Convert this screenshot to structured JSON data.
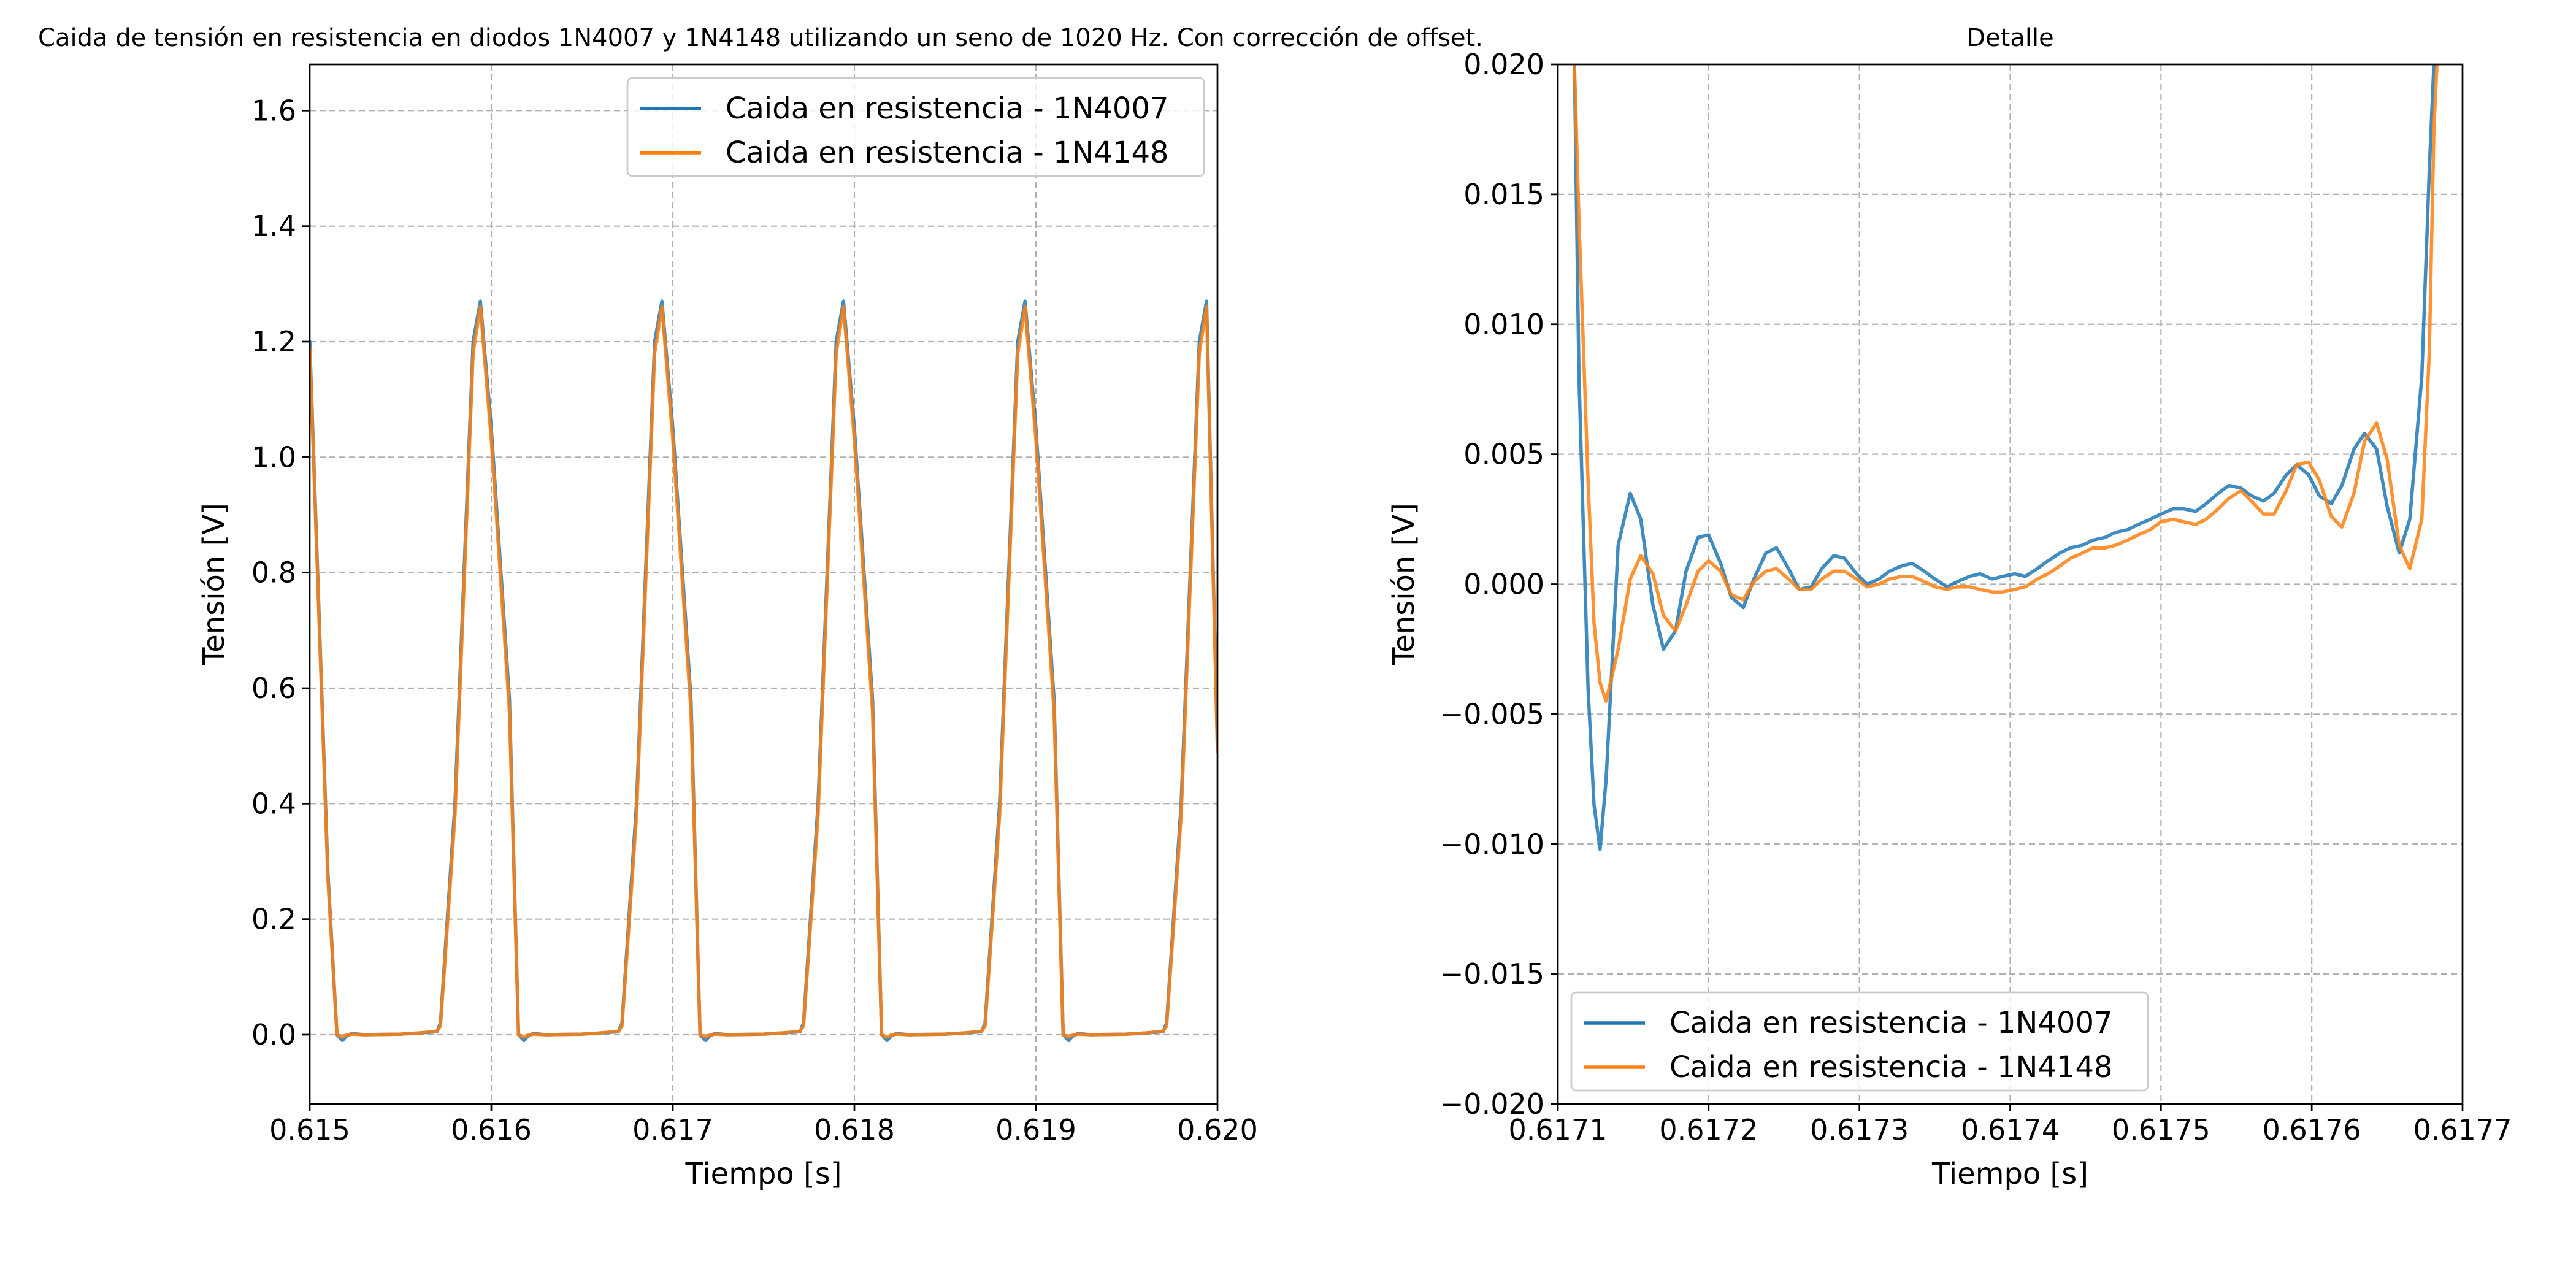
{
  "figure": {
    "suptitle": "Caida de tensión en resistencia en diodos 1N4007 y 1N4148 utilizando un seno de 1020 Hz. Con corrección de offset."
  },
  "colors": {
    "series_1N4007": "#1f77b4",
    "series_1N4148": "#ff7f0e"
  },
  "chart_data": [
    {
      "type": "line",
      "title": "",
      "xlabel": "Tiempo [s]",
      "ylabel": "Tensión [V]",
      "xlim": [
        0.615,
        0.62
      ],
      "ylim": [
        -0.12,
        1.68
      ],
      "xticks": [
        "0.615",
        "0.616",
        "0.617",
        "0.618",
        "0.619",
        "0.620"
      ],
      "yticks": [
        "0.0",
        "0.2",
        "0.4",
        "0.6",
        "0.8",
        "1.0",
        "1.2",
        "1.4",
        "1.6"
      ],
      "grid": true,
      "legend_position": "top-right",
      "series": [
        {
          "name": "Caida en resistencia - 1N4007",
          "x": [
            0.615,
            0.61505,
            0.6151,
            0.61515,
            0.61518,
            0.6152,
            0.61523,
            0.6153,
            0.6155,
            0.6156,
            0.6157,
            0.61572,
            0.6158,
            0.6159,
            0.61594,
            0.616,
            0.6161,
            0.61615,
            0.61618,
            0.6162,
            0.61623,
            0.6163,
            0.6165,
            0.6166,
            0.6167,
            0.61672,
            0.6168,
            0.6169,
            0.61694,
            0.617,
            0.6171,
            0.61715,
            0.61718,
            0.6172,
            0.61723,
            0.6173,
            0.6175,
            0.6176,
            0.6177,
            0.61772,
            0.6178,
            0.6179,
            0.61794,
            0.618,
            0.6181,
            0.61815,
            0.61818,
            0.6182,
            0.61823,
            0.6183,
            0.6185,
            0.6186,
            0.6187,
            0.61872,
            0.6188,
            0.6189,
            0.61894,
            0.619,
            0.6191,
            0.61915,
            0.61918,
            0.6192,
            0.61923,
            0.6193,
            0.6195,
            0.6196,
            0.6197,
            0.61972,
            0.6198,
            0.6199,
            0.61994,
            0.62
          ],
          "y": [
            1.2,
            0.74,
            0.28,
            0.0,
            -0.01,
            -0.003,
            0.002,
            0.0,
            0.001,
            0.003,
            0.005,
            0.02,
            0.4,
            1.2,
            1.27,
            1.05,
            0.58,
            0.0,
            -0.01,
            -0.003,
            0.002,
            0.0,
            0.001,
            0.003,
            0.005,
            0.02,
            0.4,
            1.2,
            1.27,
            1.05,
            0.58,
            0.0,
            -0.01,
            -0.003,
            0.002,
            0.0,
            0.001,
            0.003,
            0.005,
            0.02,
            0.4,
            1.2,
            1.27,
            1.05,
            0.58,
            0.0,
            -0.01,
            -0.003,
            0.002,
            0.0,
            0.001,
            0.003,
            0.005,
            0.02,
            0.4,
            1.2,
            1.27,
            1.05,
            0.58,
            0.0,
            -0.01,
            -0.003,
            0.002,
            0.0,
            0.001,
            0.003,
            0.005,
            0.02,
            0.4,
            1.2,
            1.27,
            0.5
          ]
        },
        {
          "name": "Caida en resistencia - 1N4148",
          "x": [
            0.615,
            0.61505,
            0.6151,
            0.61515,
            0.61518,
            0.6152,
            0.61523,
            0.6153,
            0.6155,
            0.6156,
            0.6157,
            0.61572,
            0.6158,
            0.6159,
            0.61594,
            0.616,
            0.6161,
            0.61615,
            0.61618,
            0.6162,
            0.61623,
            0.6163,
            0.6165,
            0.6166,
            0.6167,
            0.61672,
            0.6168,
            0.6169,
            0.61694,
            0.617,
            0.6171,
            0.61715,
            0.61718,
            0.6172,
            0.61723,
            0.6173,
            0.6175,
            0.6176,
            0.6177,
            0.61772,
            0.6178,
            0.6179,
            0.61794,
            0.618,
            0.6181,
            0.61815,
            0.61818,
            0.6182,
            0.61823,
            0.6183,
            0.6185,
            0.6186,
            0.6187,
            0.61872,
            0.6188,
            0.6189,
            0.61894,
            0.619,
            0.6191,
            0.61915,
            0.61918,
            0.6192,
            0.61923,
            0.6193,
            0.6195,
            0.6196,
            0.6197,
            0.61972,
            0.6198,
            0.6199,
            0.61994,
            0.62
          ],
          "y": [
            1.19,
            0.73,
            0.27,
            0.0,
            -0.004,
            -0.001,
            0.001,
            0.0,
            0.001,
            0.003,
            0.006,
            0.015,
            0.38,
            1.18,
            1.26,
            1.03,
            0.56,
            0.0,
            -0.004,
            -0.001,
            0.001,
            0.0,
            0.001,
            0.003,
            0.006,
            0.015,
            0.38,
            1.18,
            1.26,
            1.03,
            0.56,
            0.0,
            -0.004,
            -0.001,
            0.001,
            0.0,
            0.001,
            0.003,
            0.006,
            0.015,
            0.38,
            1.18,
            1.26,
            1.03,
            0.56,
            0.0,
            -0.004,
            -0.001,
            0.001,
            0.0,
            0.001,
            0.003,
            0.006,
            0.015,
            0.38,
            1.18,
            1.26,
            1.03,
            0.56,
            0.0,
            -0.004,
            -0.001,
            0.001,
            0.0,
            0.001,
            0.003,
            0.006,
            0.015,
            0.38,
            1.18,
            1.26,
            0.49
          ]
        }
      ]
    },
    {
      "type": "line",
      "title": "Detalle",
      "xlabel": "Tiempo [s]",
      "ylabel": "Tensión [V]",
      "xlim": [
        0.6171,
        0.6177
      ],
      "ylim": [
        -0.02,
        0.02
      ],
      "xticks": [
        "0.6171",
        "0.6172",
        "0.6173",
        "0.6174",
        "0.6175",
        "0.6176",
        "0.6177"
      ],
      "yticks": [
        "−0.020",
        "−0.015",
        "−0.010",
        "−0.005",
        "0.000",
        "0.005",
        "0.010",
        "0.015",
        "0.020"
      ],
      "grid": true,
      "legend_position": "bottom-left",
      "series": [
        {
          "name": "Caida en resistencia - 1N4007",
          "x": [
            0.617111,
            0.617114,
            0.61712,
            0.617124,
            0.617128,
            0.617132,
            0.61714,
            0.617148,
            0.617155,
            0.617163,
            0.61717,
            0.617178,
            0.617185,
            0.617193,
            0.6172,
            0.617208,
            0.617215,
            0.617223,
            0.61723,
            0.617238,
            0.617245,
            0.617253,
            0.61726,
            0.617268,
            0.617275,
            0.617283,
            0.61729,
            0.617298,
            0.617305,
            0.617313,
            0.61732,
            0.617328,
            0.617335,
            0.617343,
            0.61735,
            0.617358,
            0.617365,
            0.617373,
            0.61738,
            0.617388,
            0.617395,
            0.617403,
            0.61741,
            0.617418,
            0.617425,
            0.617433,
            0.61744,
            0.617448,
            0.617455,
            0.617463,
            0.61747,
            0.617478,
            0.617485,
            0.617493,
            0.6175,
            0.617508,
            0.617515,
            0.617523,
            0.61753,
            0.617538,
            0.617545,
            0.617553,
            0.61756,
            0.617568,
            0.617575,
            0.617583,
            0.61759,
            0.617598,
            0.617605,
            0.617613,
            0.61762,
            0.617628,
            0.617635,
            0.617643,
            0.61765,
            0.617658,
            0.617665,
            0.617673,
            0.617678,
            0.617681,
            0.617683
          ],
          "y": [
            0.02,
            0.008,
            -0.004,
            -0.0085,
            -0.0102,
            -0.0075,
            0.0015,
            0.0035,
            0.0025,
            -0.0008,
            -0.0025,
            -0.0018,
            0.0005,
            0.0018,
            0.0019,
            0.0008,
            -0.0005,
            -0.0009,
            0.0002,
            0.0012,
            0.0014,
            0.0006,
            -0.0002,
            -0.0001,
            0.0006,
            0.0011,
            0.001,
            0.0004,
            0.0,
            0.0002,
            0.0005,
            0.0007,
            0.0008,
            0.0005,
            0.0002,
            -0.0001,
            0.0001,
            0.0003,
            0.0004,
            0.0002,
            0.0003,
            0.0004,
            0.0003,
            0.0006,
            0.0009,
            0.0012,
            0.0014,
            0.0015,
            0.0017,
            0.0018,
            0.002,
            0.0021,
            0.0023,
            0.0025,
            0.0027,
            0.0029,
            0.0029,
            0.0028,
            0.0031,
            0.0035,
            0.0038,
            0.0037,
            0.0034,
            0.0032,
            0.0035,
            0.0042,
            0.0046,
            0.0042,
            0.0034,
            0.0031,
            0.0038,
            0.0052,
            0.0058,
            0.0052,
            0.003,
            0.0012,
            0.0025,
            0.008,
            0.016,
            0.02,
            0.02
          ]
        },
        {
          "name": "Caida en resistencia - 1N4148",
          "x": [
            0.617111,
            0.617114,
            0.61712,
            0.617124,
            0.617128,
            0.617132,
            0.61714,
            0.617148,
            0.617155,
            0.617163,
            0.61717,
            0.617178,
            0.617185,
            0.617193,
            0.6172,
            0.617208,
            0.617215,
            0.617223,
            0.61723,
            0.617238,
            0.617245,
            0.617253,
            0.61726,
            0.617268,
            0.617275,
            0.617283,
            0.61729,
            0.617298,
            0.617305,
            0.617313,
            0.61732,
            0.617328,
            0.617335,
            0.617343,
            0.61735,
            0.617358,
            0.617365,
            0.617373,
            0.61738,
            0.617388,
            0.617395,
            0.617403,
            0.61741,
            0.617418,
            0.617425,
            0.617433,
            0.61744,
            0.617448,
            0.617455,
            0.617463,
            0.61747,
            0.617478,
            0.617485,
            0.617493,
            0.6175,
            0.617508,
            0.617515,
            0.617523,
            0.61753,
            0.617538,
            0.617545,
            0.617553,
            0.61756,
            0.617568,
            0.617575,
            0.617583,
            0.61759,
            0.617598,
            0.617605,
            0.617613,
            0.61762,
            0.617628,
            0.617635,
            0.617643,
            0.61765,
            0.617658,
            0.617665,
            0.617673,
            0.617678,
            0.617681,
            0.617683
          ],
          "y": [
            0.02,
            0.014,
            0.004,
            -0.0015,
            -0.0038,
            -0.0045,
            -0.0025,
            0.0002,
            0.0011,
            0.0004,
            -0.0012,
            -0.0018,
            -0.0008,
            0.0005,
            0.0009,
            0.0005,
            -0.0004,
            -0.0006,
            0.0001,
            0.0005,
            0.0006,
            0.0002,
            -0.0002,
            -0.0002,
            0.0002,
            0.0005,
            0.0005,
            0.0002,
            -0.0001,
            0.0,
            0.0002,
            0.0003,
            0.0003,
            0.0001,
            -0.0001,
            -0.0002,
            -0.0001,
            -0.0001,
            -0.0002,
            -0.0003,
            -0.0003,
            -0.0002,
            -0.0001,
            0.0002,
            0.0004,
            0.0007,
            0.001,
            0.0012,
            0.0014,
            0.0014,
            0.0015,
            0.0017,
            0.0019,
            0.0021,
            0.0024,
            0.0025,
            0.0024,
            0.0023,
            0.0025,
            0.0029,
            0.0033,
            0.0036,
            0.0032,
            0.0027,
            0.0027,
            0.0036,
            0.0046,
            0.0047,
            0.004,
            0.0026,
            0.0022,
            0.0035,
            0.0055,
            0.0062,
            0.0048,
            0.0015,
            0.0006,
            0.0025,
            0.009,
            0.0175,
            0.02
          ]
        }
      ]
    }
  ]
}
